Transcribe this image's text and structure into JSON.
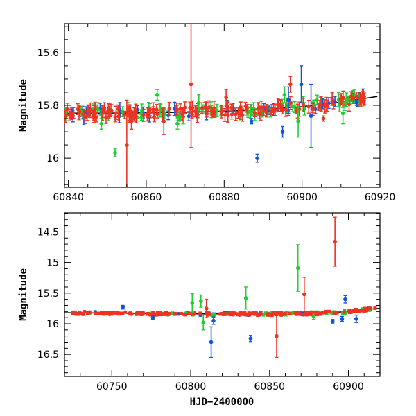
{
  "chart_data": [
    {
      "type": "scatter",
      "title": "",
      "xlabel": "",
      "ylabel": "Magnitude",
      "xlim": [
        60839,
        60920
      ],
      "ylim": [
        16.11,
        15.49
      ],
      "y_inverted": true,
      "xticks": [
        60840,
        60860,
        60880,
        60900,
        60920
      ],
      "yticks": [
        15.6,
        15.8,
        16
      ],
      "ytick_labels": [
        "15.6",
        "15.8",
        "16"
      ],
      "grid": false,
      "legend": "none",
      "colors": {
        "series_a": "#ee3322",
        "series_b": "#22cc33",
        "series_c": "#1155dd",
        "model": "#000000"
      },
      "model_curve": {
        "x": [
          60839,
          60855,
          60870,
          60885,
          60900,
          60910,
          60920
        ],
        "y": [
          15.83,
          15.829,
          15.826,
          15.82,
          15.805,
          15.787,
          15.765
        ]
      },
      "outliers": [
        {
          "series": "series_a",
          "x": 60871.5,
          "y": 15.72,
          "err": 0.24
        },
        {
          "series": "series_a",
          "x": 60855.0,
          "y": 15.95,
          "err": 0.17
        },
        {
          "series": "series_a",
          "x": 60856.2,
          "y": 15.86,
          "err": 0.03
        },
        {
          "series": "series_a",
          "x": 60864.5,
          "y": 15.86,
          "err": 0.05
        },
        {
          "series": "series_a",
          "x": 60880.5,
          "y": 15.77,
          "err": 0.03
        },
        {
          "series": "series_a",
          "x": 60897.0,
          "y": 15.72,
          "err": 0.03
        },
        {
          "series": "series_a",
          "x": 60905.5,
          "y": 15.85,
          "err": 0.01
        },
        {
          "series": "series_b",
          "x": 60852.0,
          "y": 15.98,
          "err": 0.015
        },
        {
          "series": "series_b",
          "x": 60848.5,
          "y": 15.87,
          "err": 0.02
        },
        {
          "series": "series_b",
          "x": 60862.8,
          "y": 15.76,
          "err": 0.02
        },
        {
          "series": "series_b",
          "x": 60868.0,
          "y": 15.87,
          "err": 0.02
        },
        {
          "series": "series_b",
          "x": 60873.5,
          "y": 15.79,
          "err": 0.03
        },
        {
          "series": "series_b",
          "x": 60895.5,
          "y": 15.76,
          "err": 0.03
        },
        {
          "series": "series_b",
          "x": 60899.0,
          "y": 15.86,
          "err": 0.06
        },
        {
          "series": "series_b",
          "x": 60910.5,
          "y": 15.83,
          "err": 0.04
        },
        {
          "series": "series_c",
          "x": 60888.5,
          "y": 16.0,
          "err": 0.015
        },
        {
          "series": "series_c",
          "x": 60895.0,
          "y": 15.9,
          "err": 0.02
        },
        {
          "series": "series_c",
          "x": 60896.5,
          "y": 15.78,
          "err": 0.05
        },
        {
          "series": "series_c",
          "x": 60899.8,
          "y": 15.72,
          "err": 0.07
        },
        {
          "series": "series_c",
          "x": 60902.3,
          "y": 15.84,
          "err": 0.12
        },
        {
          "series": "series_c",
          "x": 60887.0,
          "y": 15.86,
          "err": 0.01
        },
        {
          "series": "series_c",
          "x": 60914.0,
          "y": 15.79,
          "err": 0.01
        }
      ]
    },
    {
      "type": "scatter",
      "title": "",
      "xlabel": "HJD−2400000",
      "ylabel": "Magnitude",
      "xlim": [
        60720,
        60920
      ],
      "ylim": [
        16.86,
        14.19
      ],
      "y_inverted": true,
      "xticks": [
        60750,
        60800,
        60850,
        60900
      ],
      "yticks": [
        14.5,
        15,
        15.5,
        16,
        16.5
      ],
      "ytick_labels": [
        "14.5",
        "15",
        "15.5",
        "16",
        "16.5"
      ],
      "grid": false,
      "legend": "none",
      "colors": {
        "series_a": "#ee3322",
        "series_b": "#22cc33",
        "series_c": "#1155dd",
        "model": "#000000"
      },
      "model_curve": {
        "x": [
          60725,
          60800,
          60850,
          60880,
          60900,
          60918
        ],
        "y": [
          15.82,
          15.84,
          15.84,
          15.83,
          15.8,
          15.75
        ]
      },
      "outliers": [
        {
          "series": "series_a",
          "x": 60891.5,
          "y": 14.66,
          "err": 0.4
        },
        {
          "series": "series_a",
          "x": 60872.0,
          "y": 15.52,
          "err": 0.28
        },
        {
          "series": "series_a",
          "x": 60854.5,
          "y": 16.2,
          "err": 0.35
        },
        {
          "series": "series_a",
          "x": 60810.0,
          "y": 15.75,
          "err": 0.15
        },
        {
          "series": "series_b",
          "x": 60868.0,
          "y": 15.09,
          "err": 0.38
        },
        {
          "series": "series_b",
          "x": 60801.0,
          "y": 15.66,
          "err": 0.15
        },
        {
          "series": "series_b",
          "x": 60806.5,
          "y": 15.63,
          "err": 0.1
        },
        {
          "series": "series_b",
          "x": 60835.0,
          "y": 15.58,
          "err": 0.18
        },
        {
          "series": "series_b",
          "x": 60808.0,
          "y": 15.98,
          "err": 0.12
        },
        {
          "series": "series_b",
          "x": 60878.0,
          "y": 15.88,
          "err": 0.05
        },
        {
          "series": "series_c",
          "x": 60813.0,
          "y": 16.3,
          "err": 0.25
        },
        {
          "series": "series_c",
          "x": 60838.0,
          "y": 16.24,
          "err": 0.05
        },
        {
          "series": "series_c",
          "x": 60814.5,
          "y": 15.95,
          "err": 0.06
        },
        {
          "series": "series_c",
          "x": 60757.0,
          "y": 15.73,
          "err": 0.03
        },
        {
          "series": "series_c",
          "x": 60776.0,
          "y": 15.9,
          "err": 0.03
        },
        {
          "series": "series_c",
          "x": 60890.0,
          "y": 15.96,
          "err": 0.03
        },
        {
          "series": "series_c",
          "x": 60896.0,
          "y": 15.92,
          "err": 0.04
        },
        {
          "series": "series_c",
          "x": 60898.0,
          "y": 15.6,
          "err": 0.06
        },
        {
          "series": "series_c",
          "x": 60905.0,
          "y": 15.92,
          "err": 0.06
        }
      ]
    }
  ]
}
